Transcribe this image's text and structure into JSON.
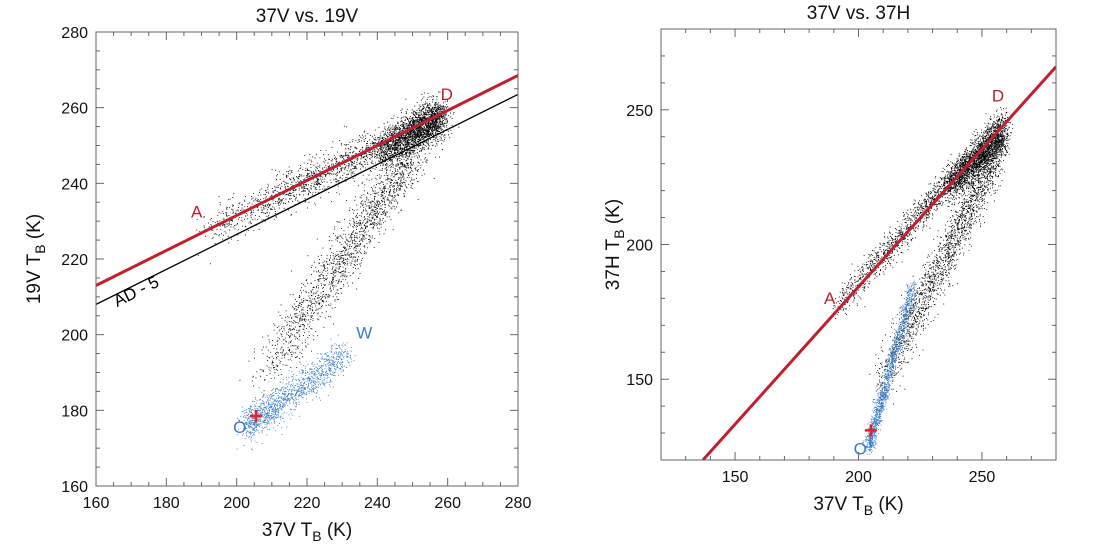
{
  "chart_data": [
    {
      "type": "scatter",
      "title": "37V vs. 19V",
      "xlabel": "37V T",
      "xlabel_sub": "B",
      "xlabel_unit": " (K)",
      "ylabel": "19V T",
      "ylabel_sub": "B",
      "ylabel_unit": " (K)",
      "xlim": [
        160,
        280
      ],
      "ylim": [
        160,
        280
      ],
      "xticks": [
        160,
        180,
        200,
        220,
        240,
        260,
        280
      ],
      "yticks": [
        160,
        180,
        200,
        220,
        240,
        260,
        280
      ],
      "minor_step": 5,
      "grid": false,
      "point_clouds": [
        {
          "color": "#000000",
          "from": [
            190,
            227
          ],
          "to": [
            259,
            258
          ],
          "spread": 2.6
        },
        {
          "color": "#000000",
          "from": [
            206,
            187
          ],
          "to": [
            252,
            251
          ],
          "spread": 3.5
        },
        {
          "color": "#000000",
          "from": [
            240,
            248
          ],
          "to": [
            258,
            258
          ],
          "spread": 2.5
        },
        {
          "color": "#3a7cc8",
          "from": [
            203,
            176
          ],
          "to": [
            231,
            195
          ],
          "spread": 2.2
        }
      ],
      "lines": [
        {
          "label": "",
          "color": "#c0202e",
          "from": [
            160,
            213
          ],
          "to": [
            280,
            268.5
          ],
          "width": 3
        },
        {
          "label": "AD - 5",
          "color": "#000000",
          "from": [
            160,
            208
          ],
          "to": [
            280,
            263.5
          ],
          "width": 1.3
        }
      ],
      "markers": [
        {
          "symbol": "+",
          "color": "#e8202a",
          "at": [
            205.5,
            178.5
          ]
        }
      ],
      "annotations": [
        {
          "text": "A",
          "color": "#c0202e",
          "at": [
            187,
            231
          ]
        },
        {
          "text": "D",
          "color": "#c0202e",
          "at": [
            258,
            262
          ]
        },
        {
          "text": "W",
          "color": "#3a7cc8",
          "at": [
            234,
            199
          ]
        },
        {
          "text": "O",
          "color": "#3a7cc8",
          "at": [
            199,
            174
          ]
        }
      ]
    },
    {
      "type": "scatter",
      "title": "37V vs. 37H",
      "xlabel": "37V T",
      "xlabel_sub": "B",
      "xlabel_unit": " (K)",
      "ylabel": "37H T",
      "ylabel_sub": "B",
      "ylabel_unit": " (K)",
      "xlim": [
        120,
        280
      ],
      "ylim": [
        120,
        280
      ],
      "xticks": [
        150,
        200,
        250
      ],
      "yticks": [
        150,
        200,
        250
      ],
      "minor_step": 10,
      "grid": false,
      "point_clouds": [
        {
          "color": "#000000",
          "from": [
            190,
            176
          ],
          "to": [
            259,
            246
          ],
          "spread": 2.6
        },
        {
          "color": "#000000",
          "from": [
            207,
            145
          ],
          "to": [
            255,
            232
          ],
          "spread": 4.0
        },
        {
          "color": "#000000",
          "from": [
            235,
            220
          ],
          "to": [
            258,
            240
          ],
          "spread": 3.0
        },
        {
          "color": "#3a7cc8",
          "from": [
            204,
            125
          ],
          "to": [
            222,
            185
          ],
          "spread": 1.6
        }
      ],
      "lines": [
        {
          "label": "",
          "color": "#c0202e",
          "from": [
            137,
            120
          ],
          "to": [
            280,
            266
          ],
          "width": 3
        }
      ],
      "markers": [
        {
          "symbol": "+",
          "color": "#e8202a",
          "at": [
            205,
            131
          ]
        }
      ],
      "annotations": [
        {
          "text": "A",
          "color": "#c0202e",
          "at": [
            186,
            178
          ]
        },
        {
          "text": "D",
          "color": "#c0202e",
          "at": [
            254,
            253
          ]
        },
        {
          "text": "O",
          "color": "#3a7cc8",
          "at": [
            198,
            122
          ]
        }
      ]
    }
  ]
}
